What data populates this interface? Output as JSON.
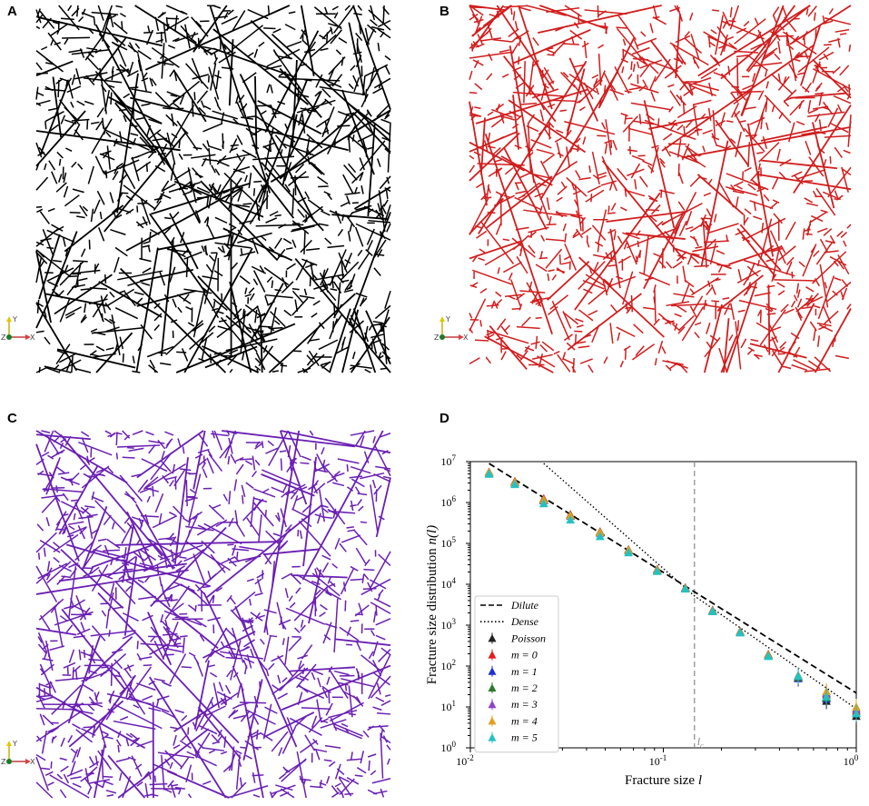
{
  "panels": {
    "a": {
      "letter": "A",
      "color": "#000000"
    },
    "b": {
      "letter": "B",
      "color": "#d11d1d"
    },
    "c": {
      "letter": "C",
      "color": "#6a1fb3"
    },
    "d": {
      "letter": "D"
    }
  },
  "axes_triad": {
    "y": "Y",
    "z": "Z",
    "x": "X"
  },
  "chart_data": {
    "type": "scatter",
    "xlabel": "Fracture size l",
    "ylabel": "Fracture size distribution n(l)",
    "xscale": "log",
    "yscale": "log",
    "xlim": [
      0.01,
      1
    ],
    "ylim": [
      1,
      10000000
    ],
    "x_tick_labels": [
      "10^-2",
      "10^-1",
      "10^0"
    ],
    "y_tick_labels": [
      "10^0",
      "10^1",
      "10^2",
      "10^3",
      "10^4",
      "10^5",
      "10^6",
      "10^7"
    ],
    "vline": {
      "x": 0.145,
      "label": "l_c",
      "style": "dashed",
      "color": "#888888"
    },
    "lines": [
      {
        "name": "Dilute",
        "style": "dashed",
        "points": [
          [
            0.0125,
            9000000
          ],
          [
            1.0,
            22
          ]
        ]
      },
      {
        "name": "Dense",
        "style": "dotted",
        "points": [
          [
            0.024,
            9000000
          ],
          [
            0.145,
            5200
          ],
          [
            1.0,
            9
          ]
        ]
      }
    ],
    "x": [
      0.0125,
      0.017,
      0.024,
      0.033,
      0.047,
      0.066,
      0.093,
      0.13,
      0.18,
      0.25,
      0.35,
      0.5,
      0.7,
      1.0
    ],
    "series": [
      {
        "name": "Poisson",
        "color": "#222222",
        "values": [
          5500000,
          3200000,
          1200000,
          500000,
          190000,
          70000,
          23000,
          8200,
          2300,
          700,
          190,
          52,
          14,
          6
        ]
      },
      {
        "name": "m = 0",
        "color": "#e31a1c",
        "values": [
          5600000,
          3300000,
          1250000,
          510000,
          195000,
          71000,
          23500,
          8300,
          2350,
          710,
          195,
          55,
          20,
          8
        ]
      },
      {
        "name": "m = 1",
        "color": "#1f2fd4",
        "values": [
          5400000,
          3100000,
          1150000,
          480000,
          185000,
          68000,
          22500,
          8000,
          2250,
          690,
          185,
          50,
          16,
          7
        ]
      },
      {
        "name": "m = 2",
        "color": "#2a7a2a",
        "values": [
          5500000,
          3150000,
          1180000,
          490000,
          188000,
          69000,
          22800,
          8100,
          2280,
          695,
          188,
          53,
          17,
          7
        ]
      },
      {
        "name": "m = 3",
        "color": "#8e44c9",
        "values": [
          5300000,
          3050000,
          1120000,
          470000,
          180000,
          67000,
          22000,
          7900,
          2200,
          680,
          180,
          57,
          22,
          9
        ]
      },
      {
        "name": "m = 4",
        "color": "#e0a020",
        "values": [
          5450000,
          3120000,
          1170000,
          485000,
          186000,
          68500,
          22600,
          8050,
          2260,
          688,
          186,
          60,
          24,
          10
        ]
      },
      {
        "name": "m = 5",
        "color": "#22c2c2",
        "values": [
          5000000,
          2800000,
          950000,
          380000,
          150000,
          60000,
          21000,
          7800,
          2200,
          660,
          175,
          58,
          18,
          7
        ]
      }
    ]
  }
}
